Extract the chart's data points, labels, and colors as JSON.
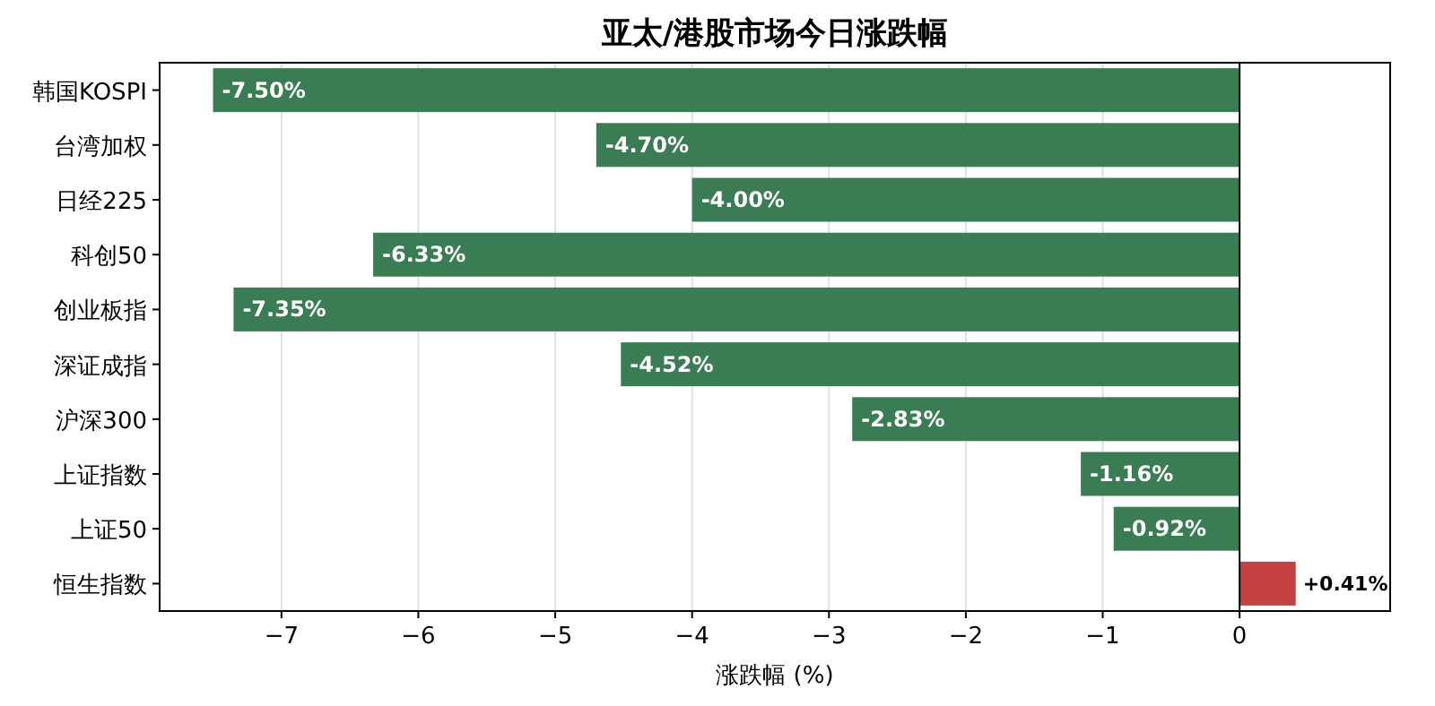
{
  "chart_data": {
    "type": "bar",
    "orientation": "horizontal",
    "title": "亚太/港股市场今日涨跌幅",
    "xlabel": "涨跌幅 (%)",
    "categories": [
      "韩国KOSPI",
      "台湾加权",
      "日经225",
      "科创50",
      "创业板指",
      "深证成指",
      "沪深300",
      "上证指数",
      "上证50",
      "恒生指数"
    ],
    "values": [
      -7.5,
      -4.7,
      -4.0,
      -6.33,
      -7.35,
      -4.52,
      -2.83,
      -1.16,
      -0.92,
      0.41
    ],
    "colors": [
      "#3a7d54",
      "#3a7d54",
      "#3a7d54",
      "#3a7d54",
      "#3a7d54",
      "#3a7d54",
      "#3a7d54",
      "#3a7d54",
      "#3a7d54",
      "#c54040"
    ],
    "value_labels": [
      "-7.50%",
      "-4.70%",
      "-4.00%",
      "-6.33%",
      "-7.35%",
      "-4.52%",
      "-2.83%",
      "-1.16%",
      "-0.92%",
      "+0.41%"
    ],
    "xlim": [
      -7.89,
      1.1
    ],
    "xticks": [
      -7,
      -6,
      -5,
      -4,
      -3,
      -2,
      -1,
      0
    ],
    "grid": "x",
    "ref_lines": [
      {
        "axis": "x",
        "value": 0,
        "color": "#000000"
      }
    ]
  }
}
